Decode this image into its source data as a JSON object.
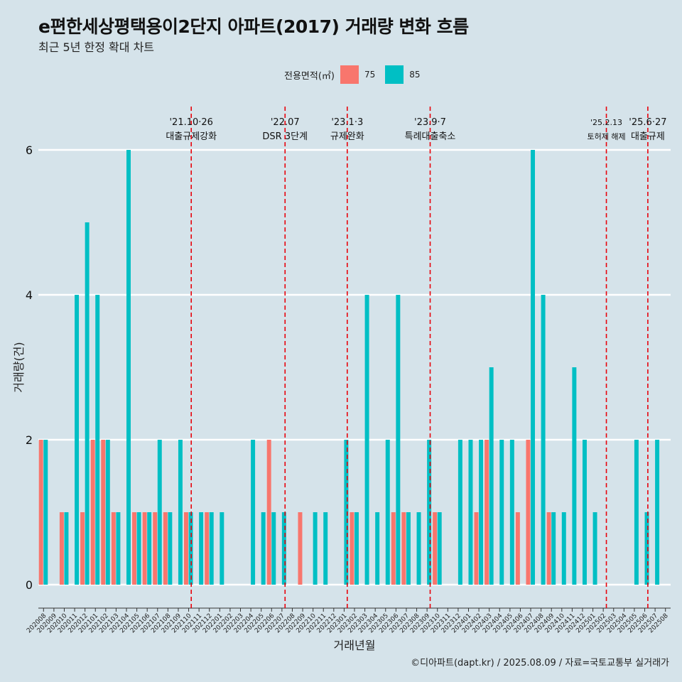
{
  "title": "e편한세상평택용이2단지 아파트(2017) 거래량 변화 흐름",
  "subtitle": "최근 5년 한정 확대 차트",
  "caption": "©디아파트(dapt.kr) / 2025.08.09 / 자료=국토교통부 실거래가",
  "colors": {
    "s75": "#f8766d",
    "s85": "#00bfc4",
    "background": "#d5e3ea",
    "grid": "#ffffff",
    "event_line": "#e8000b"
  },
  "chart_data": {
    "type": "bar",
    "xlabel": "거래년월",
    "ylabel": "거래량(건)",
    "ylim": [
      0,
      6
    ],
    "yticks": [
      0,
      2,
      4,
      6
    ],
    "legend_title": "전용면적(㎡)",
    "legend_position": "top",
    "grid": true,
    "categories": [
      "202008",
      "202009",
      "202010",
      "202011",
      "202012",
      "202101",
      "202102",
      "202103",
      "202104",
      "202105",
      "202106",
      "202107",
      "202108",
      "202109",
      "202110",
      "202111",
      "202112",
      "202201",
      "202202",
      "202203",
      "202204",
      "202205",
      "202206",
      "202207",
      "202208",
      "202209",
      "202210",
      "202211",
      "202212",
      "202301",
      "202302",
      "202303",
      "202304",
      "202305",
      "202306",
      "202307",
      "202308",
      "202309",
      "202310",
      "202311",
      "202312",
      "202401",
      "202402",
      "202403",
      "202404",
      "202405",
      "202406",
      "202407",
      "202408",
      "202409",
      "202410",
      "202411",
      "202412",
      "202501",
      "202502",
      "202503",
      "202504",
      "202505",
      "202506",
      "202507",
      "202508"
    ],
    "series": [
      {
        "name": "75",
        "values": [
          2,
          0,
          1,
          0,
          1,
          2,
          2,
          1,
          0,
          1,
          1,
          1,
          1,
          0,
          1,
          0,
          1,
          0,
          0,
          0,
          0,
          0,
          2,
          0,
          0,
          1,
          0,
          0,
          0,
          0,
          1,
          0,
          0,
          0,
          1,
          1,
          0,
          0,
          1,
          0,
          0,
          0,
          1,
          2,
          0,
          0,
          1,
          2,
          0,
          1,
          0,
          0,
          0,
          0,
          0,
          0,
          0,
          0,
          0,
          0,
          0
        ]
      },
      {
        "name": "85",
        "values": [
          2,
          0,
          1,
          4,
          5,
          4,
          2,
          1,
          6,
          1,
          1,
          2,
          1,
          2,
          1,
          1,
          1,
          1,
          0,
          0,
          2,
          1,
          1,
          1,
          0,
          0,
          1,
          1,
          0,
          2,
          1,
          4,
          1,
          2,
          4,
          1,
          1,
          2,
          1,
          0,
          2,
          2,
          2,
          3,
          2,
          2,
          0,
          6,
          4,
          1,
          1,
          3,
          2,
          1,
          0,
          0,
          0,
          2,
          1,
          2,
          0
        ]
      }
    ],
    "events": [
      {
        "date": "'21.10·26",
        "label": "대출규제강화",
        "position": 14.25
      },
      {
        "date": "'22.07",
        "label": "DSR 3단계",
        "position": 23.3
      },
      {
        "date": "'23.1·3",
        "label": "규제완화",
        "position": 29.3
      },
      {
        "date": "'23.9·7",
        "label": "특례대출축소",
        "position": 37.3
      },
      {
        "date": "'25.2.13",
        "label": "토허제 해제",
        "position": 54.3
      },
      {
        "date": "'25.6·27",
        "label": "대출규제",
        "position": 58.3
      }
    ]
  }
}
